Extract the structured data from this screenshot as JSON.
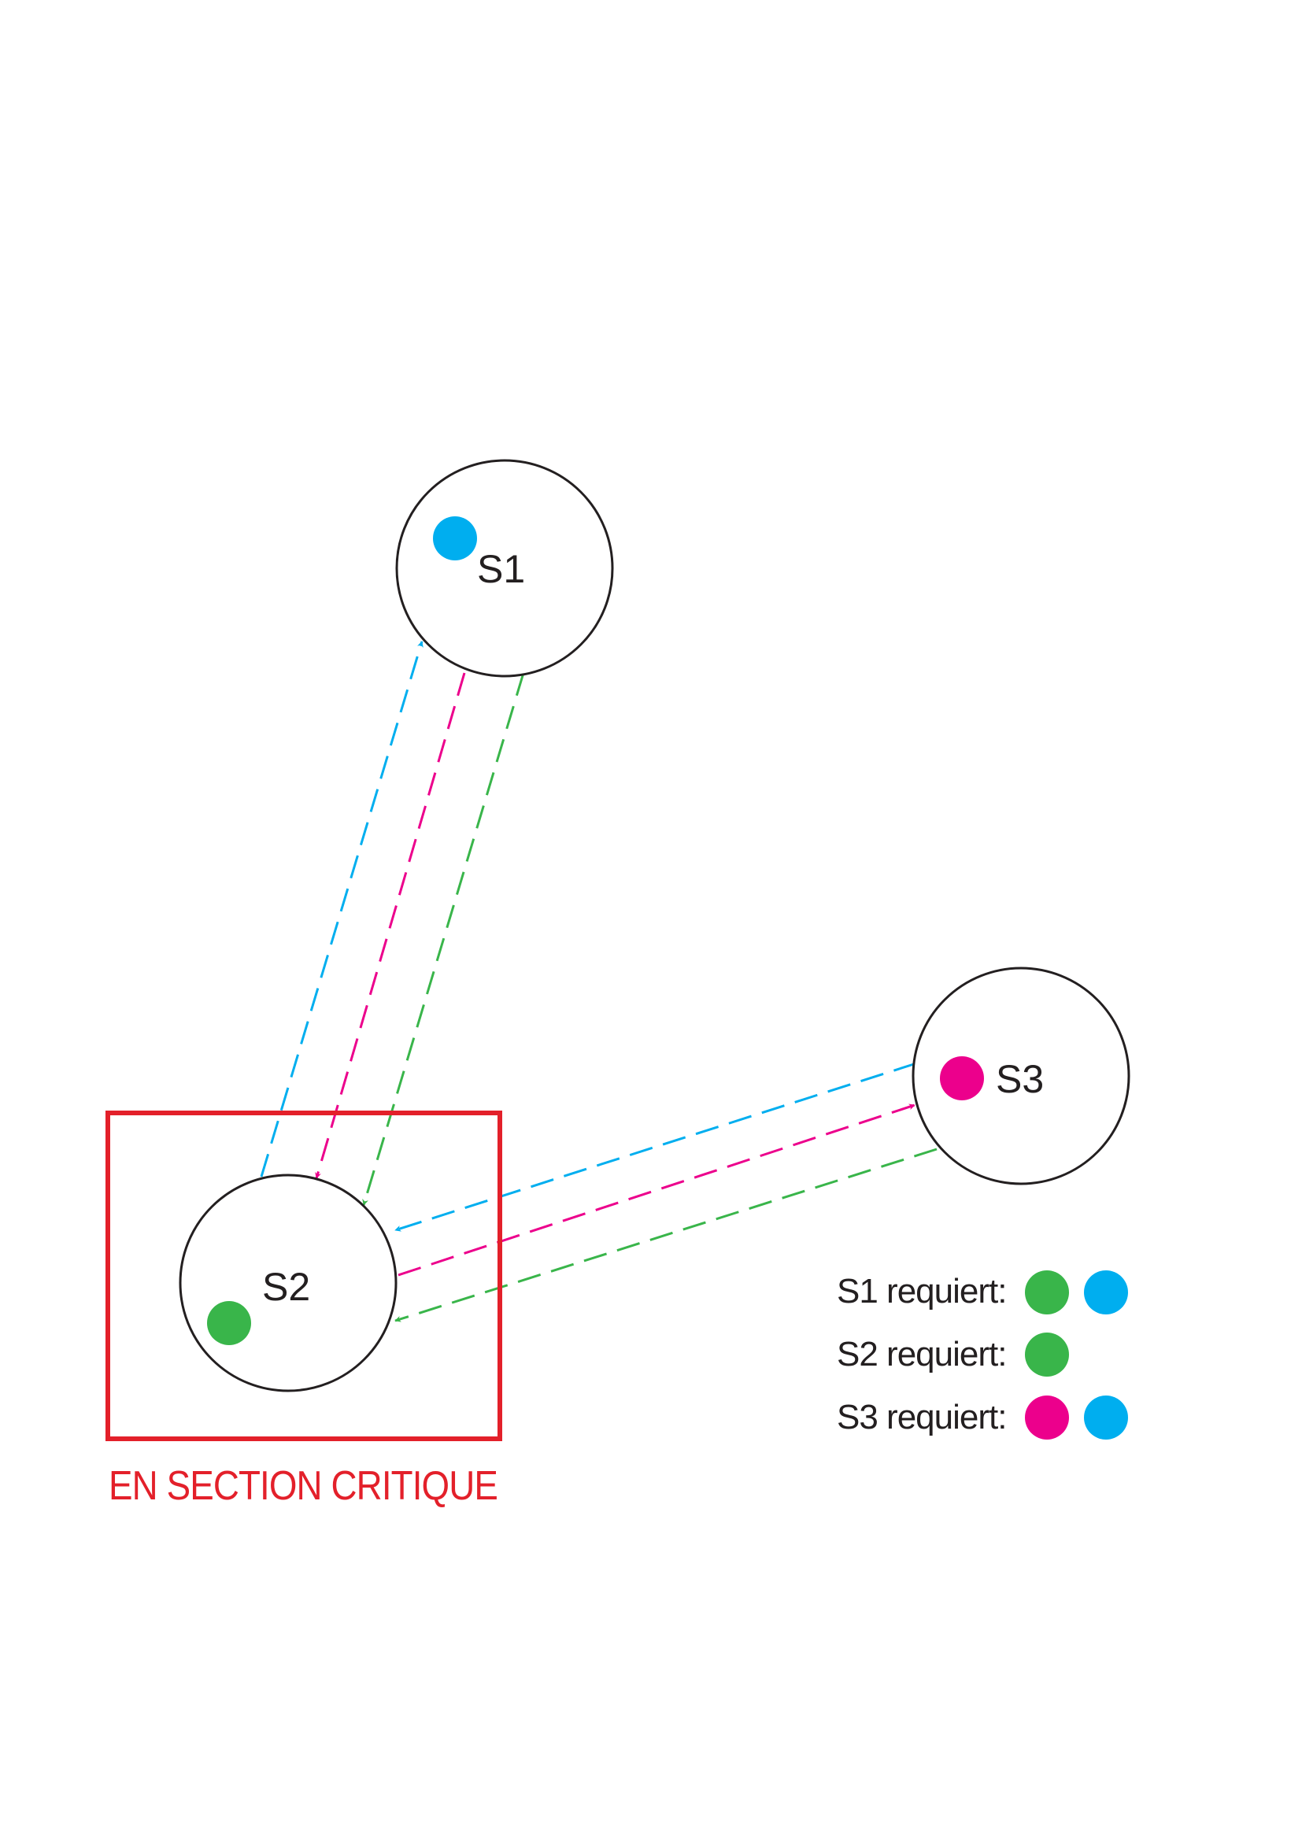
{
  "nodes": [
    {
      "label": "S1"
    },
    {
      "label": "S2"
    },
    {
      "label": "S3"
    }
  ],
  "critical_section": {
    "label": "EN SECTION CRITIQUE"
  },
  "legend": [
    {
      "label": "S1 requiert:",
      "tokens": [
        "green",
        "blue"
      ]
    },
    {
      "label": "S2 requiert:",
      "tokens": [
        "green"
      ]
    },
    {
      "label": "S3 requiert:",
      "tokens": [
        "magenta",
        "blue"
      ]
    }
  ],
  "colors": {
    "blue": "#00aeef",
    "magenta": "#ec008c",
    "green": "#39b54a",
    "red": "#e3202a",
    "outline": "#231f20"
  }
}
